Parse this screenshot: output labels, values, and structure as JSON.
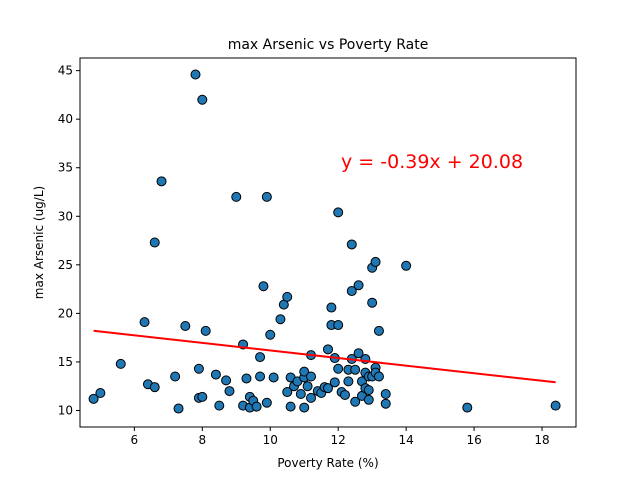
{
  "chart_data": {
    "type": "scatter",
    "title": "max Arsenic vs Poverty Rate",
    "xlabel": "Poverty Rate (%)",
    "ylabel": "max Arsenic (ug/L)",
    "xlim": [
      4.4,
      19.0
    ],
    "ylim": [
      8.3,
      46.3
    ],
    "xticks": [
      6,
      8,
      10,
      12,
      14,
      16,
      18
    ],
    "yticks": [
      10,
      15,
      20,
      25,
      30,
      35,
      40,
      45
    ],
    "grid": false,
    "marker_color": "#1f77b4",
    "marker_edge": "#000000",
    "regression": {
      "slope": -0.39,
      "intercept": 20.08,
      "x_range": [
        4.8,
        18.4
      ],
      "color": "#ff0000",
      "equation": "y = -0.39x + 20.08"
    },
    "points": [
      {
        "x": 4.8,
        "y": 11.2
      },
      {
        "x": 5.0,
        "y": 11.8
      },
      {
        "x": 5.6,
        "y": 14.8
      },
      {
        "x": 6.3,
        "y": 19.1
      },
      {
        "x": 6.4,
        "y": 12.7
      },
      {
        "x": 6.6,
        "y": 12.4
      },
      {
        "x": 6.6,
        "y": 27.3
      },
      {
        "x": 6.8,
        "y": 33.6
      },
      {
        "x": 7.2,
        "y": 13.5
      },
      {
        "x": 7.3,
        "y": 10.2
      },
      {
        "x": 7.5,
        "y": 18.7
      },
      {
        "x": 7.8,
        "y": 44.6
      },
      {
        "x": 7.9,
        "y": 11.3
      },
      {
        "x": 7.9,
        "y": 14.3
      },
      {
        "x": 8.0,
        "y": 42.0
      },
      {
        "x": 8.0,
        "y": 11.4
      },
      {
        "x": 8.1,
        "y": 18.2
      },
      {
        "x": 8.4,
        "y": 13.7
      },
      {
        "x": 8.5,
        "y": 10.5
      },
      {
        "x": 8.7,
        "y": 13.1
      },
      {
        "x": 8.8,
        "y": 12.0
      },
      {
        "x": 9.0,
        "y": 32.0
      },
      {
        "x": 9.2,
        "y": 16.8
      },
      {
        "x": 9.2,
        "y": 10.5
      },
      {
        "x": 9.3,
        "y": 13.3
      },
      {
        "x": 9.4,
        "y": 11.4
      },
      {
        "x": 9.4,
        "y": 10.3
      },
      {
        "x": 9.5,
        "y": 11.0
      },
      {
        "x": 9.6,
        "y": 10.4
      },
      {
        "x": 9.7,
        "y": 13.5
      },
      {
        "x": 9.7,
        "y": 15.5
      },
      {
        "x": 9.8,
        "y": 22.8
      },
      {
        "x": 9.9,
        "y": 10.8
      },
      {
        "x": 9.9,
        "y": 32.0
      },
      {
        "x": 10.0,
        "y": 17.8
      },
      {
        "x": 10.1,
        "y": 13.4
      },
      {
        "x": 10.3,
        "y": 19.4
      },
      {
        "x": 10.4,
        "y": 20.9
      },
      {
        "x": 10.5,
        "y": 21.7
      },
      {
        "x": 10.5,
        "y": 11.9
      },
      {
        "x": 10.6,
        "y": 10.4
      },
      {
        "x": 10.6,
        "y": 13.4
      },
      {
        "x": 10.7,
        "y": 12.5
      },
      {
        "x": 10.8,
        "y": 13.0
      },
      {
        "x": 10.9,
        "y": 11.7
      },
      {
        "x": 11.0,
        "y": 13.4
      },
      {
        "x": 11.0,
        "y": 10.3
      },
      {
        "x": 11.0,
        "y": 14.0
      },
      {
        "x": 11.1,
        "y": 12.5
      },
      {
        "x": 11.2,
        "y": 11.3
      },
      {
        "x": 11.2,
        "y": 13.5
      },
      {
        "x": 11.2,
        "y": 15.7
      },
      {
        "x": 11.4,
        "y": 12.0
      },
      {
        "x": 11.5,
        "y": 11.8
      },
      {
        "x": 11.6,
        "y": 12.4
      },
      {
        "x": 11.7,
        "y": 16.3
      },
      {
        "x": 11.7,
        "y": 12.3
      },
      {
        "x": 11.8,
        "y": 18.8
      },
      {
        "x": 11.8,
        "y": 20.6
      },
      {
        "x": 11.9,
        "y": 15.4
      },
      {
        "x": 11.9,
        "y": 12.9
      },
      {
        "x": 12.0,
        "y": 18.8
      },
      {
        "x": 12.0,
        "y": 30.4
      },
      {
        "x": 12.0,
        "y": 14.3
      },
      {
        "x": 12.1,
        "y": 11.9
      },
      {
        "x": 12.2,
        "y": 11.6
      },
      {
        "x": 12.3,
        "y": 14.2
      },
      {
        "x": 12.3,
        "y": 13.0
      },
      {
        "x": 12.4,
        "y": 27.1
      },
      {
        "x": 12.4,
        "y": 22.3
      },
      {
        "x": 12.4,
        "y": 15.3
      },
      {
        "x": 12.5,
        "y": 14.2
      },
      {
        "x": 12.5,
        "y": 10.9
      },
      {
        "x": 12.6,
        "y": 15.9
      },
      {
        "x": 12.6,
        "y": 22.9
      },
      {
        "x": 12.7,
        "y": 13.0
      },
      {
        "x": 12.7,
        "y": 11.5
      },
      {
        "x": 12.8,
        "y": 12.3
      },
      {
        "x": 12.8,
        "y": 13.9
      },
      {
        "x": 12.8,
        "y": 15.3
      },
      {
        "x": 12.9,
        "y": 13.5
      },
      {
        "x": 12.9,
        "y": 12.1
      },
      {
        "x": 12.9,
        "y": 11.1
      },
      {
        "x": 13.0,
        "y": 24.7
      },
      {
        "x": 13.0,
        "y": 21.1
      },
      {
        "x": 13.0,
        "y": 13.5
      },
      {
        "x": 13.1,
        "y": 14.4
      },
      {
        "x": 13.1,
        "y": 25.3
      },
      {
        "x": 13.1,
        "y": 13.9
      },
      {
        "x": 13.2,
        "y": 18.2
      },
      {
        "x": 13.2,
        "y": 13.5
      },
      {
        "x": 13.4,
        "y": 11.7
      },
      {
        "x": 13.4,
        "y": 10.7
      },
      {
        "x": 14.0,
        "y": 24.9
      },
      {
        "x": 15.8,
        "y": 10.3
      },
      {
        "x": 18.4,
        "y": 10.5
      }
    ]
  }
}
